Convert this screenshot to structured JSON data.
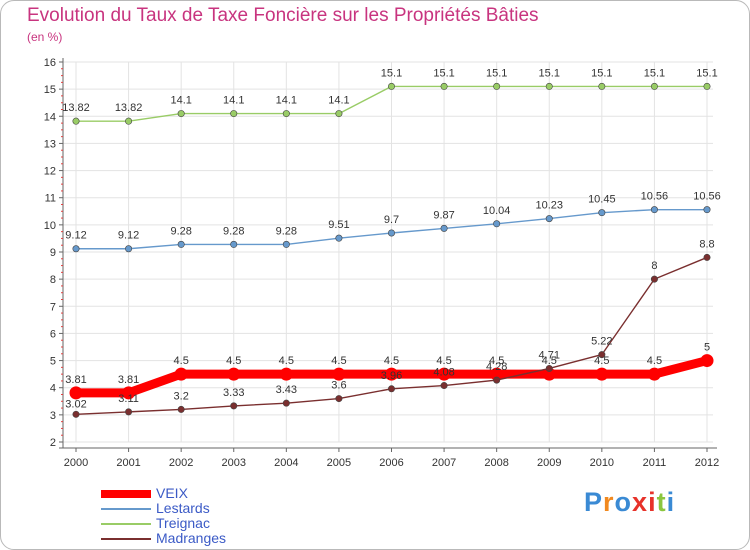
{
  "header": {
    "title": "Evolution du Taux de Taxe Foncière sur les Propriétés Bâties",
    "unit": "(en %)"
  },
  "brand": {
    "text": "Proxiti",
    "colors": [
      "#3a8ad4",
      "#f1891f",
      "#3a8ad4",
      "#e7322a",
      "#e7322a",
      "#8bc63f",
      "#3a8ad4"
    ]
  },
  "chart_data": {
    "type": "line",
    "title": "Evolution du Taux de Taxe Foncière sur les Propriétés Bâties",
    "ylabel": "(en %)",
    "xlabel": "",
    "x": [
      "2000",
      "2001",
      "2002",
      "2003",
      "2004",
      "2005",
      "2006",
      "2007",
      "2008",
      "2009",
      "2010",
      "2011",
      "2012"
    ],
    "ylim": [
      2,
      16
    ],
    "yticks": [
      2,
      3,
      4,
      5,
      6,
      7,
      8,
      9,
      10,
      11,
      12,
      13,
      14,
      15,
      16
    ],
    "grid": true,
    "legend": "bottom-left",
    "series": [
      {
        "name": "VEIX",
        "color": "#ff0000",
        "width": "thick",
        "values": [
          3.81,
          3.81,
          4.5,
          4.5,
          4.5,
          4.5,
          4.5,
          4.5,
          4.5,
          4.5,
          4.5,
          4.5,
          5
        ],
        "labels": [
          "3.81",
          "3.81",
          "4.5",
          "4.5",
          "4.5",
          "4.5",
          "4.5",
          "4.5",
          "4.5",
          "4.5",
          "4.5",
          "4.5",
          "5"
        ]
      },
      {
        "name": "Lestards",
        "color": "#6699cc",
        "width": "thin",
        "values": [
          9.12,
          9.12,
          9.28,
          9.28,
          9.28,
          9.51,
          9.7,
          9.87,
          10.04,
          10.23,
          10.45,
          10.56,
          10.56
        ],
        "labels": [
          "9.12",
          "9.12",
          "9.28",
          "9.28",
          "9.28",
          "9.51",
          "9.7",
          "9.87",
          "10.04",
          "10.23",
          "10.45",
          "10.56",
          "10.56"
        ]
      },
      {
        "name": "Treignac",
        "color": "#99cc66",
        "width": "thin",
        "values": [
          13.82,
          13.82,
          14.1,
          14.1,
          14.1,
          14.1,
          15.1,
          15.1,
          15.1,
          15.1,
          15.1,
          15.1,
          15.1
        ],
        "labels": [
          "13.82",
          "13.82",
          "14.1",
          "14.1",
          "14.1",
          "14.1",
          "15.1",
          "15.1",
          "15.1",
          "15.1",
          "15.1",
          "15.1",
          "15.1"
        ]
      },
      {
        "name": "Madranges",
        "color": "#7a2f2f",
        "width": "thin",
        "values": [
          3.02,
          3.11,
          3.2,
          3.33,
          3.43,
          3.6,
          3.96,
          4.08,
          4.28,
          4.71,
          5.22,
          8,
          8.8
        ],
        "labels": [
          "3.02",
          "3.11",
          "3.2",
          "3.33",
          "3.43",
          "3.6",
          "3.96",
          "4.08",
          "4.28",
          "4.71",
          "5.22",
          "8",
          "8.8"
        ]
      }
    ]
  }
}
